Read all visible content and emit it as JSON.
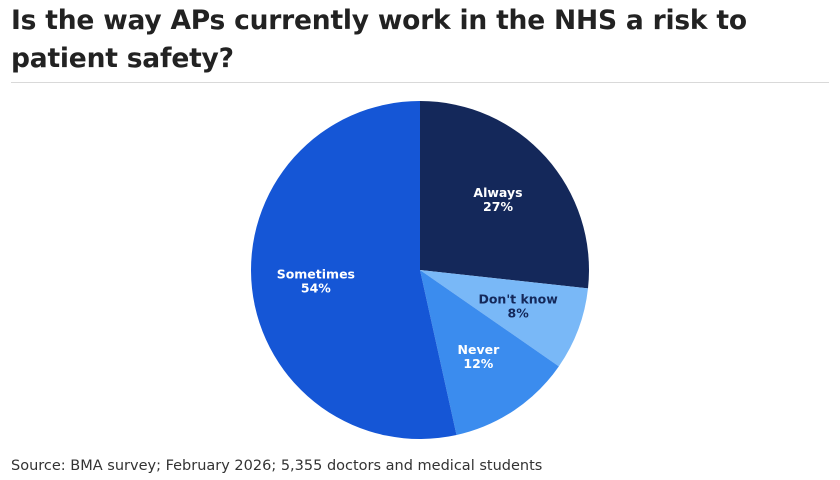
{
  "title": "Is the way APs currently work in the NHS a risk to patient safety?",
  "source": "Source: BMA survey; February 2026; 5,355 doctors and medical students",
  "chart_data": {
    "type": "pie",
    "title": "Is the way APs currently work in the NHS a risk to patient safety?",
    "slices": [
      {
        "label": "Always",
        "value": 27,
        "value_label": "27%",
        "color": "#14285a",
        "text_color": "#ffffff"
      },
      {
        "label": "Don't know",
        "value": 8,
        "value_label": "8%",
        "color": "#79b8f7",
        "text_color": "#14285a"
      },
      {
        "label": "Never",
        "value": 12,
        "value_label": "12%",
        "color": "#3b8cee",
        "text_color": "#ffffff"
      },
      {
        "label": "Sometimes",
        "value": 54,
        "value_label": "54%",
        "color": "#1556d6",
        "text_color": "#ffffff"
      }
    ],
    "start": "12 o'clock",
    "direction": "clockwise",
    "legend": "none"
  }
}
